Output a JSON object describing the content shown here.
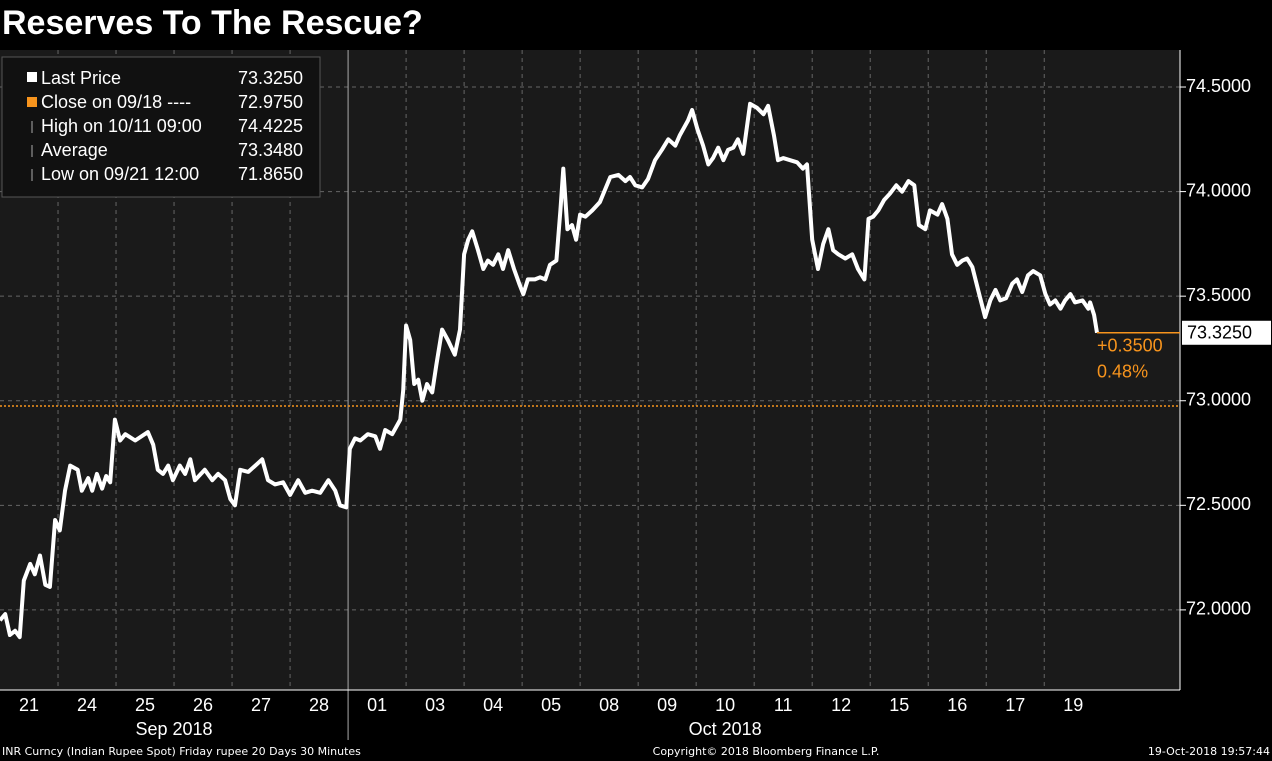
{
  "chart_data": {
    "type": "line",
    "title": "Reserves To The Rescue?",
    "categories": [
      "21",
      "24",
      "25",
      "26",
      "27",
      "28",
      "01",
      "03",
      "04",
      "05",
      "08",
      "09",
      "10",
      "11",
      "12",
      "15",
      "16",
      "17",
      "19"
    ],
    "month_labels": [
      "Sep 2018",
      "Oct 2018"
    ],
    "x": [
      0,
      0.09,
      0.17,
      0.26,
      0.34,
      0.41,
      0.52,
      0.6,
      0.69,
      0.78,
      0.86,
      0.95,
      1.03,
      1.12,
      1.21,
      1.34,
      1.41,
      1.52,
      1.59,
      1.67,
      1.76,
      1.83,
      1.9,
      1.98,
      2.07,
      2.16,
      2.33,
      2.55,
      2.64,
      2.72,
      2.81,
      2.9,
      2.98,
      3.1,
      3.19,
      3.28,
      3.36,
      3.53,
      3.66,
      3.76,
      3.88,
      3.97,
      4.05,
      4.14,
      4.28,
      4.4,
      4.52,
      4.62,
      4.74,
      4.88,
      5.0,
      5.14,
      5.26,
      5.38,
      5.52,
      5.66,
      5.78,
      5.86,
      5.97,
      6.03,
      6.12,
      6.21,
      6.34,
      6.47,
      6.55,
      6.64,
      6.76,
      6.9,
      6.95,
      7.0,
      7.07,
      7.14,
      7.21,
      7.28,
      7.36,
      7.45,
      7.52,
      7.62,
      7.72,
      7.84,
      7.93,
      8.0,
      8.07,
      8.14,
      8.24,
      8.33,
      8.41,
      8.5,
      8.59,
      8.67,
      8.76,
      8.86,
      8.95,
      9.02,
      9.1,
      9.22,
      9.31,
      9.4,
      9.48,
      9.59,
      9.66,
      9.71,
      9.78,
      9.86,
      9.93,
      10.0,
      10.09,
      10.21,
      10.34,
      10.43,
      10.52,
      10.66,
      10.78,
      10.86,
      10.95,
      11.07,
      11.17,
      11.29,
      11.41,
      11.52,
      11.64,
      11.72,
      11.86,
      11.93,
      12.02,
      12.12,
      12.21,
      12.29,
      12.38,
      12.47,
      12.55,
      12.64,
      12.72,
      12.81,
      12.93,
      13.05,
      13.16,
      13.24,
      13.34,
      13.41,
      13.5,
      13.62,
      13.74,
      13.84,
      13.91,
      14.0,
      14.1,
      14.19,
      14.28,
      14.36,
      14.45,
      14.57,
      14.69,
      14.79,
      14.9,
      14.97,
      15.05,
      15.14,
      15.24,
      15.34,
      15.45,
      15.55,
      15.66,
      15.76,
      15.84,
      15.95,
      16.03,
      16.16,
      16.24,
      16.33,
      16.41,
      16.5,
      16.59,
      16.67,
      16.76,
      16.86,
      16.98,
      17.07,
      17.16,
      17.24,
      17.34,
      17.45,
      17.53,
      17.62,
      17.72,
      17.81,
      17.93,
      18.02,
      18.1,
      18.19,
      18.28,
      18.36,
      18.45,
      18.53,
      18.66,
      18.76,
      18.79,
      18.86,
      18.91
    ],
    "series": [
      {
        "name": "Last Price",
        "color": "#ffffff",
        "values": [
          71.95,
          71.98,
          71.88,
          71.9,
          71.87,
          72.14,
          72.22,
          72.17,
          72.26,
          72.12,
          72.11,
          72.43,
          72.38,
          72.57,
          72.69,
          72.67,
          72.57,
          72.63,
          72.57,
          72.65,
          72.58,
          72.64,
          72.61,
          72.91,
          72.81,
          72.84,
          72.81,
          72.85,
          72.79,
          72.67,
          72.65,
          72.69,
          72.62,
          72.69,
          72.65,
          72.72,
          72.62,
          72.67,
          72.62,
          72.65,
          72.62,
          72.53,
          72.5,
          72.67,
          72.66,
          72.69,
          72.72,
          72.62,
          72.6,
          72.61,
          72.55,
          72.62,
          72.56,
          72.57,
          72.56,
          72.62,
          72.57,
          72.5,
          72.49,
          72.77,
          72.82,
          72.81,
          72.84,
          72.83,
          72.77,
          72.86,
          72.84,
          72.91,
          73.05,
          73.36,
          73.29,
          73.08,
          73.1,
          73.0,
          73.08,
          73.04,
          73.17,
          73.34,
          73.29,
          73.22,
          73.34,
          73.7,
          73.77,
          73.81,
          73.72,
          73.63,
          73.67,
          73.65,
          73.7,
          73.63,
          73.72,
          73.63,
          73.56,
          73.51,
          73.58,
          73.58,
          73.59,
          73.58,
          73.65,
          73.67,
          73.91,
          74.11,
          73.82,
          73.84,
          73.77,
          73.89,
          73.88,
          73.91,
          73.95,
          74.01,
          74.07,
          74.08,
          74.05,
          74.07,
          74.03,
          74.02,
          74.06,
          74.15,
          74.2,
          74.25,
          74.22,
          74.27,
          74.34,
          74.39,
          74.3,
          74.22,
          74.13,
          74.16,
          74.21,
          74.15,
          74.2,
          74.21,
          74.25,
          74.18,
          74.42,
          74.4,
          74.37,
          74.41,
          74.27,
          74.15,
          74.16,
          74.15,
          74.14,
          74.11,
          74.13,
          73.77,
          73.63,
          73.75,
          73.82,
          73.72,
          73.7,
          73.68,
          73.7,
          73.63,
          73.58,
          73.87,
          73.88,
          73.91,
          73.96,
          73.99,
          74.03,
          74.0,
          74.05,
          74.03,
          73.84,
          73.82,
          73.91,
          73.89,
          73.94,
          73.87,
          73.7,
          73.65,
          73.67,
          73.68,
          73.64,
          73.53,
          73.4,
          73.48,
          73.53,
          73.48,
          73.49,
          73.56,
          73.58,
          73.52,
          73.6,
          73.62,
          73.6,
          73.51,
          73.46,
          73.48,
          73.44,
          73.48,
          73.51,
          73.47,
          73.48,
          73.44,
          73.47,
          73.41,
          73.325
        ]
      }
    ],
    "last_price_label": "73.3250",
    "close": 72.975,
    "close_color": "#f7941d",
    "stats": [
      {
        "label": "Close on 09/18 ----",
        "value": "72.9750"
      },
      {
        "label": "High on 10/11 09:00",
        "value": "74.4225"
      },
      {
        "label": "Average",
        "value": "73.3480"
      },
      {
        "label": "Low on 09/21 12:00",
        "value": "71.8650"
      }
    ],
    "change": "+0.3500",
    "change_pct": "0.48%",
    "xlim": [
      0,
      20.34
    ],
    "ylim": [
      71.617,
      74.677
    ],
    "yticks": [
      {
        "value": 72,
        "label": "72.0000"
      },
      {
        "value": 72.5,
        "label": "72.5000"
      },
      {
        "value": 73,
        "label": "73.0000"
      },
      {
        "value": 73.5,
        "label": "73.5000"
      },
      {
        "value": 74,
        "label": "74.0000"
      },
      {
        "value": 74.5,
        "label": "74.5000"
      }
    ],
    "grid": true
  },
  "footer": {
    "left": "INR Curncy (Indian Rupee Spot) Friday rupee 20 Days 30 Minutes",
    "center": "Copyright© 2018 Bloomberg Finance L.P.",
    "right": "19-Oct-2018 19:57:44"
  }
}
